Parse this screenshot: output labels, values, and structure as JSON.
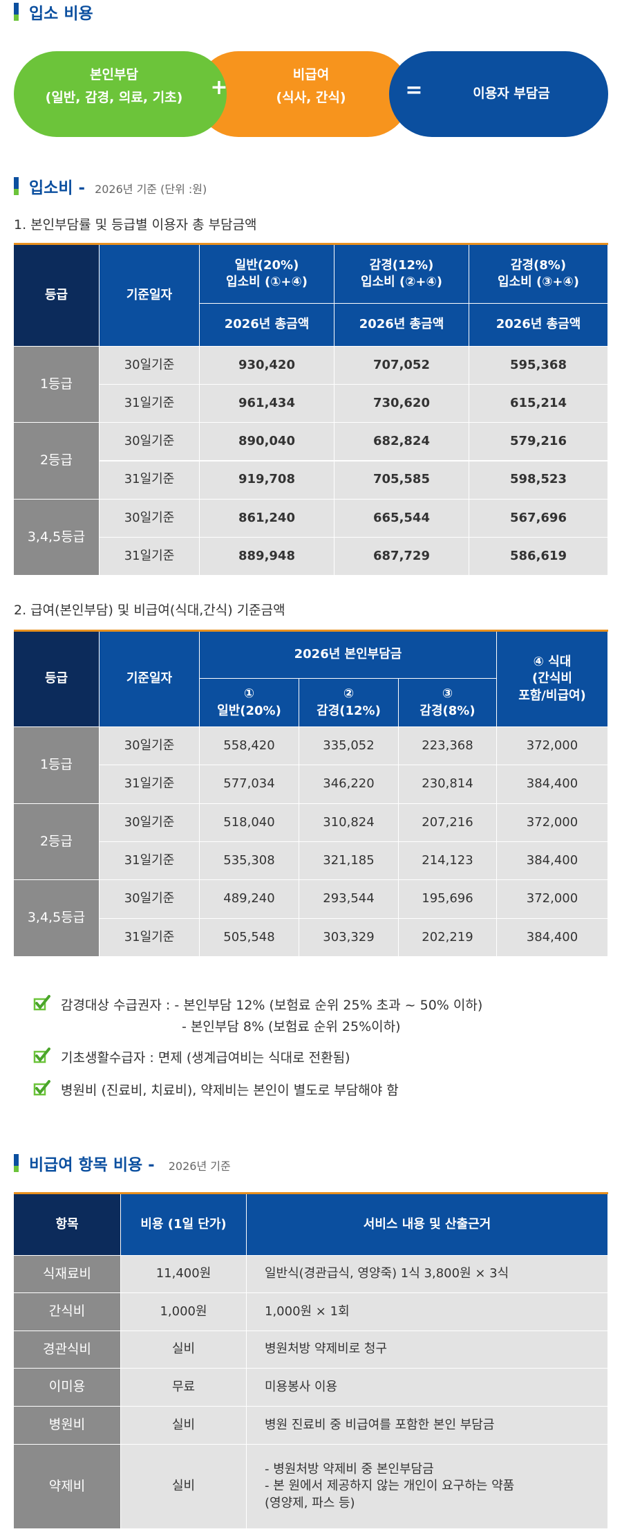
{
  "cost_formula": {
    "title": "입소 비용",
    "part1": [
      "본인부담",
      "(일반, 감경, 의료, 기초)"
    ],
    "plus": "+",
    "part2": [
      "비급여",
      "(식사, 간식)"
    ],
    "equals": "=",
    "result": "이용자 부담금"
  },
  "admission_fee": {
    "title": "입소비",
    "dash": "-",
    "note": "2026년 기준 (단위 :원)",
    "table1": {
      "caption": "1. 본인부담률 및 등급별 이용자 총 부담금액",
      "header": {
        "grade": "등급",
        "basis": "기준일자",
        "groups": [
          {
            "lines": [
              "일반(20%)",
              "입소비 (①+④)"
            ],
            "sub": "2026년 총금액"
          },
          {
            "lines": [
              "감경(12%)",
              "입소비 (②+④)"
            ],
            "sub": "2026년 총금액"
          },
          {
            "lines": [
              "감경(8%)",
              "입소비 (③+④)"
            ],
            "sub": "2026년 총금액"
          }
        ]
      },
      "groups": [
        {
          "grade": "1등급",
          "rows": [
            {
              "basis": "30일기준",
              "values": [
                "930,420",
                "707,052",
                "595,368"
              ]
            },
            {
              "basis": "31일기준",
              "values": [
                "961,434",
                "730,620",
                "615,214"
              ]
            }
          ]
        },
        {
          "grade": "2등급",
          "rows": [
            {
              "basis": "30일기준",
              "values": [
                "890,040",
                "682,824",
                "579,216"
              ]
            },
            {
              "basis": "31일기준",
              "values": [
                "919,708",
                "705,585",
                "598,523"
              ]
            }
          ]
        },
        {
          "grade": "3,4,5등급",
          "rows": [
            {
              "basis": "30일기준",
              "values": [
                "861,240",
                "665,544",
                "567,696"
              ]
            },
            {
              "basis": "31일기준",
              "values": [
                "889,948",
                "687,729",
                "586,619"
              ]
            }
          ]
        }
      ]
    },
    "table2": {
      "caption": "2. 급여(본인부담) 및 비급여(식대,간식) 기준금액",
      "header": {
        "grade": "등급",
        "basis": "기준일자",
        "group": "2026년 본인부담금",
        "subs": [
          [
            "①",
            "일반(20%)"
          ],
          [
            "②",
            "감경(12%)"
          ],
          [
            "③",
            "감경(8%)"
          ]
        ],
        "last": [
          "④ 식대",
          "(간식비",
          "포함/비급여)"
        ]
      },
      "groups": [
        {
          "grade": "1등급",
          "rows": [
            {
              "basis": "30일기준",
              "values": [
                "558,420",
                "335,052",
                "223,368",
                "372,000"
              ]
            },
            {
              "basis": "31일기준",
              "values": [
                "577,034",
                "346,220",
                "230,814",
                "384,400"
              ]
            }
          ]
        },
        {
          "grade": "2등급",
          "rows": [
            {
              "basis": "30일기준",
              "values": [
                "518,040",
                "310,824",
                "207,216",
                "372,000"
              ]
            },
            {
              "basis": "31일기준",
              "values": [
                "535,308",
                "321,185",
                "214,123",
                "384,400"
              ]
            }
          ]
        },
        {
          "grade": "3,4,5등급",
          "rows": [
            {
              "basis": "30일기준",
              "values": [
                "489,240",
                "293,544",
                "195,696",
                "372,000"
              ]
            },
            {
              "basis": "31일기준",
              "values": [
                "505,548",
                "303,329",
                "202,219",
                "384,400"
              ]
            }
          ]
        }
      ]
    },
    "notes": [
      {
        "label": "감경대상 수급권자 :",
        "lines": [
          "- 본인부담 12% (보험료 순위 25% 초과 ~ 50% 이하)",
          "- 본인부담 8% (보험료 순위 25%이하)"
        ]
      },
      {
        "lines": [
          "기초생활수급자 : 면제 (생계급여비는 식대로 전환됨)"
        ]
      },
      {
        "lines": [
          "병원비 (진료비, 치료비), 약제비는 본인이 별도로 부담해야 함"
        ]
      }
    ]
  },
  "non_covered": {
    "title": "비급여 항목 비용",
    "dash": "-",
    "note": "2026년 기준",
    "header": [
      "항목",
      "비용 (1일 단가)",
      "서비스 내용 및 산출근거"
    ],
    "rows": [
      {
        "item": "식재료비",
        "cost": "11,400원",
        "desc": [
          "일반식(경관급식, 영양죽) 1식 3,800원 × 3식"
        ]
      },
      {
        "item": "간식비",
        "cost": "1,000원",
        "desc": [
          "1,000원 × 1회"
        ]
      },
      {
        "item": "경관식비",
        "cost": "실비",
        "desc": [
          "병원처방 약제비로 청구"
        ]
      },
      {
        "item": "이미용",
        "cost": "무료",
        "desc": [
          "미용봉사 이용"
        ]
      },
      {
        "item": "병원비",
        "cost": "실비",
        "desc": [
          "병원 진료비 중 비급여를 포함한 본인 부담금"
        ]
      },
      {
        "item": "약제비",
        "cost": "실비",
        "desc": [
          "- 병원처방 약제비 중 본인부담금",
          "- 본 원에서 제공하지 않는 개인이 요구하는 약품",
          "(영양제, 파스 등)"
        ]
      }
    ]
  }
}
